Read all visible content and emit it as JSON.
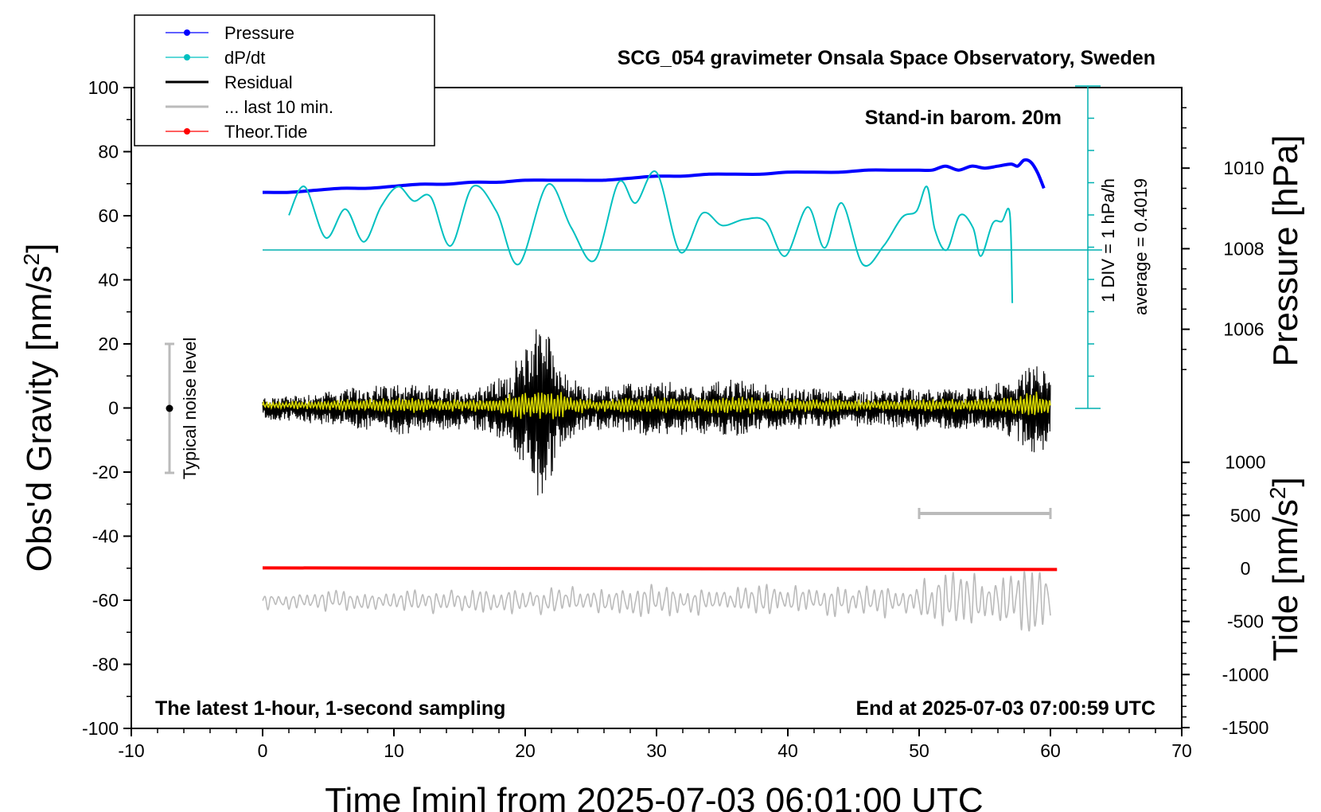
{
  "chart_data": {
    "type": "line",
    "title": "SCG_054 gravimeter Onsala Space Observatory, Sweden",
    "xlabel": "Time [min] from 2025-07-03 06:01:00 UTC",
    "ylabel_left": "Obs'd Gravity [nm/s",
    "ylabel_right_top": "Pressure [hPa]",
    "ylabel_right_bottom": "Tide [nm/s",
    "superscript": "2",
    "xlim": [
      -10,
      70
    ],
    "ylim": [
      -100,
      100
    ],
    "pressure_range": [
      1004,
      1012
    ],
    "tide_range": [
      -1500,
      1500
    ],
    "x_ticks": [
      "-10",
      "0",
      "10",
      "20",
      "30",
      "40",
      "50",
      "60",
      "70"
    ],
    "y_ticks": [
      "100",
      "80",
      "60",
      "40",
      "20",
      "0",
      "-20",
      "-40",
      "-60",
      "-80",
      "-100"
    ],
    "pressure_ticks": [
      "1010",
      "1008",
      "1006"
    ],
    "tide_ticks": [
      "1000",
      "500",
      "0",
      "-500",
      "-1000",
      "-1500"
    ],
    "annotations": {
      "stand_in": "Stand-in barom. 20m",
      "latest": "The latest 1-hour, 1-second sampling",
      "end_at": "End at 2025-07-03 07:00:59 UTC",
      "noise": "Typical noise level",
      "div": "1 DIV = 1 hPa/h",
      "average": "average = 0.4019"
    },
    "legend": {
      "placement": "top-left",
      "entries": [
        {
          "name": "Pressure",
          "color": "#0000ff",
          "marker": true
        },
        {
          "name": "dP/dt",
          "color": "#00c0c0",
          "marker": true
        },
        {
          "name": "Residual",
          "color": "#000000",
          "marker": false
        },
        {
          "name": "... last 10 min.",
          "color": "#bbbbbb",
          "marker": false
        },
        {
          "name": "Theor.Tide",
          "color": "#ff0000",
          "marker": true
        }
      ]
    },
    "series": [
      {
        "name": "Pressure",
        "color": "#0000ff",
        "axis": "pressure_hPa",
        "x": [
          0,
          2,
          4,
          6,
          8,
          10,
          12,
          14,
          16,
          18,
          20,
          22,
          24,
          26,
          28,
          30,
          32,
          34,
          36,
          38,
          40,
          42,
          44,
          46,
          48,
          50,
          51,
          52,
          53,
          54,
          55,
          56,
          57,
          57.5,
          58,
          58.5,
          59,
          59.5
        ],
        "values": [
          1009.4,
          1009.4,
          1009.45,
          1009.5,
          1009.5,
          1009.55,
          1009.6,
          1009.6,
          1009.65,
          1009.65,
          1009.7,
          1009.7,
          1009.7,
          1009.7,
          1009.75,
          1009.8,
          1009.8,
          1009.85,
          1009.85,
          1009.85,
          1009.9,
          1009.9,
          1009.9,
          1009.95,
          1009.95,
          1009.95,
          1009.95,
          1010.05,
          1009.95,
          1010.05,
          1010.0,
          1010.05,
          1010.1,
          1010.05,
          1010.2,
          1010.15,
          1009.9,
          1009.5
        ]
      },
      {
        "name": "dP/dt",
        "color": "#00c0c0",
        "axis": "dpdt_hPa_per_h",
        "x": [
          2,
          3.2,
          4.8,
          6.3,
          7.7,
          9,
          10.3,
          11.5,
          12.8,
          14.3,
          16,
          17.8,
          19.5,
          21.7,
          23.5,
          25.3,
          27.1,
          28.4,
          30,
          31.8,
          33.5,
          35,
          36.7,
          38.3,
          39.8,
          41.5,
          42.8,
          44.1,
          45.7,
          47.3,
          48.7,
          49.8,
          50.6,
          51.2,
          52.1,
          53.1,
          54.1,
          54.7,
          55.6,
          56.3,
          56.9,
          57.1
        ],
        "values": [
          -0.85,
          -1.55,
          -0.3,
          -1.0,
          -0.2,
          -1.05,
          -1.55,
          -1.2,
          -1.3,
          -0.1,
          -1.55,
          -0.95,
          0.35,
          -1.6,
          -0.55,
          0.25,
          -1.65,
          -1.15,
          -1.9,
          0.05,
          -0.9,
          -0.6,
          -0.75,
          -0.7,
          0.15,
          -1.05,
          -0.05,
          -1.15,
          0.35,
          -0.1,
          -0.8,
          -0.95,
          -1.55,
          -0.5,
          0.0,
          -0.85,
          -0.55,
          0.15,
          -0.65,
          -0.7,
          -0.9,
          1.3
        ]
      },
      {
        "name": "Residual",
        "color": "#000000",
        "axis": "gravity_nm_s2",
        "x": [
          0,
          5,
          9,
          11,
          13,
          16,
          18.5,
          20,
          21,
          22,
          23,
          25,
          27,
          30,
          33,
          36,
          38,
          40,
          43,
          46,
          50,
          54,
          57,
          59,
          60
        ],
        "amplitude": [
          3,
          5,
          7,
          8,
          6,
          6,
          10,
          18,
          30,
          22,
          10,
          6,
          7,
          8,
          7,
          9,
          7,
          6,
          6,
          5,
          6,
          6,
          8,
          14,
          10
        ]
      },
      {
        "name": "Theor.Tide",
        "color": "#ff0000",
        "axis": "tide_nm_s2",
        "x": [
          0,
          60.5
        ],
        "values": [
          5,
          -10
        ]
      },
      {
        "name": "... last 10 min.",
        "color": "#bbbbbb",
        "axis": "gravity_nm_s2_offset",
        "offset": -60,
        "x_window": [
          50,
          60
        ],
        "x": [
          0,
          10,
          20,
          30,
          40,
          50,
          52,
          55,
          57,
          58,
          59,
          60
        ],
        "amplitude": [
          3,
          4,
          5,
          6,
          5,
          6,
          12,
          10,
          9,
          22,
          12,
          8
        ]
      }
    ]
  }
}
